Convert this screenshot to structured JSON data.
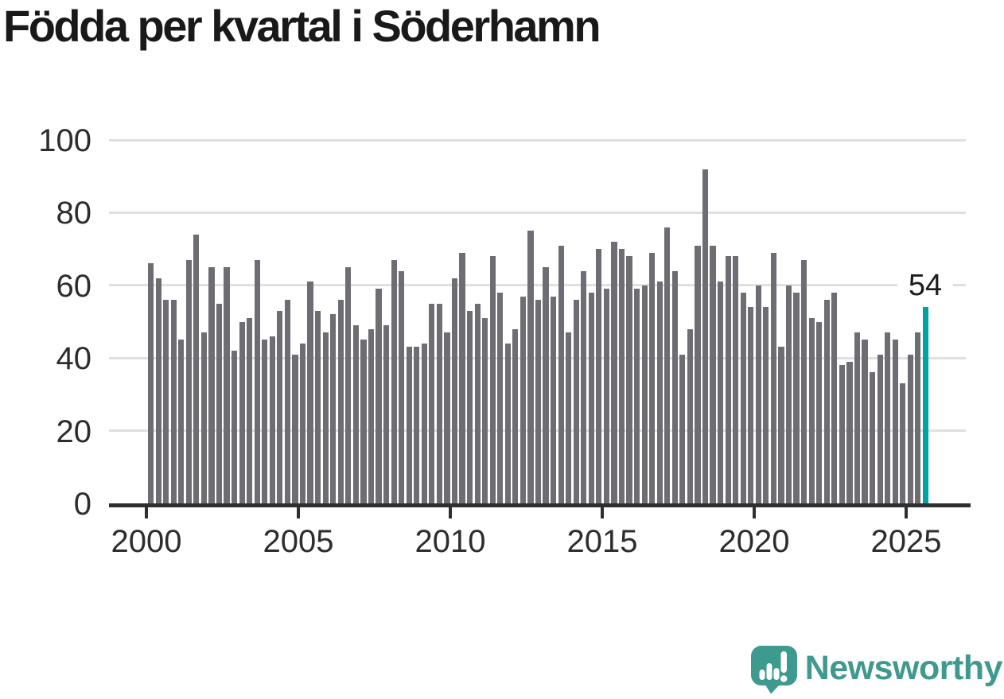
{
  "chart_data": {
    "type": "bar",
    "title": "Födda per kvartal i Söderhamn",
    "x_unit": "quarter",
    "start_period": "2000-Q1",
    "end_period": "2025-Q3",
    "values": [
      66,
      62,
      56,
      56,
      45,
      67,
      74,
      47,
      65,
      55,
      65,
      42,
      50,
      51,
      67,
      45,
      46,
      53,
      56,
      41,
      44,
      61,
      53,
      47,
      52,
      56,
      65,
      49,
      45,
      48,
      59,
      49,
      67,
      64,
      43,
      43,
      44,
      55,
      55,
      47,
      62,
      69,
      53,
      55,
      51,
      68,
      58,
      44,
      48,
      57,
      75,
      56,
      65,
      57,
      71,
      47,
      56,
      64,
      58,
      70,
      59,
      72,
      70,
      68,
      59,
      60,
      69,
      61,
      76,
      64,
      41,
      48,
      71,
      92,
      71,
      61,
      68,
      68,
      58,
      54,
      60,
      54,
      69,
      43,
      60,
      58,
      67,
      51,
      50,
      56,
      58,
      38,
      39,
      47,
      45,
      36,
      41,
      47,
      45,
      33,
      41,
      47,
      54
    ],
    "x_tick_labels": [
      "2000",
      "2005",
      "2010",
      "2015",
      "2020",
      "2025"
    ],
    "y_ticks": [
      0,
      20,
      40,
      60,
      80,
      100
    ],
    "ylim": [
      0,
      100
    ],
    "grid": "horizontal",
    "legend": "none",
    "bar_color": "#6e6d74",
    "highlight_color": "#00a2a2",
    "highlight_index": 102,
    "highlight_label": "54"
  },
  "branding": {
    "logo_text": "Newsworthy",
    "logo_color": "#3f998f",
    "logo_icon": "newsworthy-speech-bubble-bar-chart-icon"
  }
}
